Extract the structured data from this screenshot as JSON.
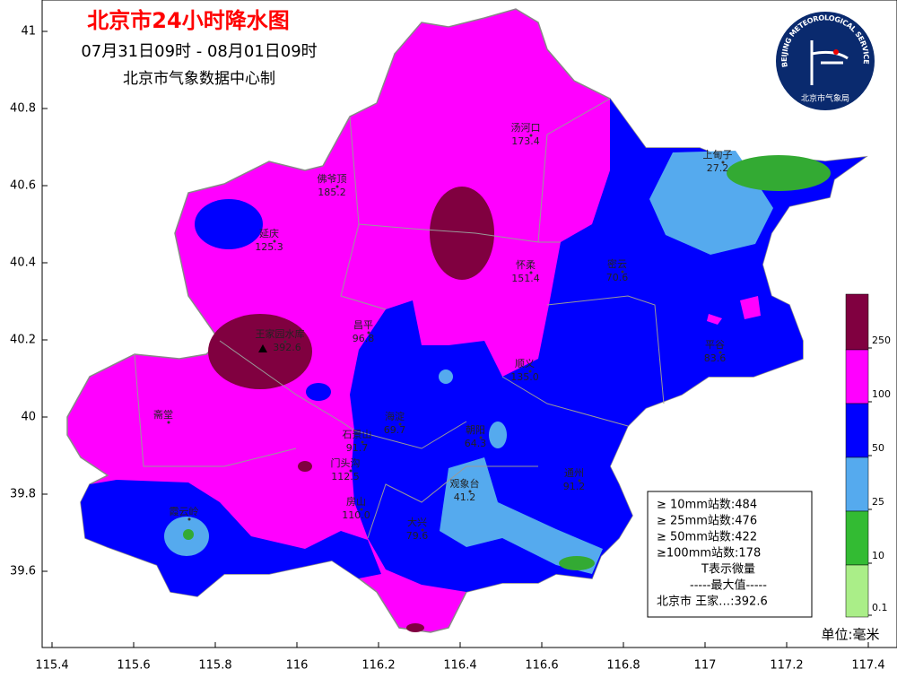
{
  "header": {
    "title": "北京市24小时降水图",
    "period": "07月31日09时 - 08月01日09时",
    "producer": "北京市气象数据中心制"
  },
  "logo": {
    "text_en": "BEIJING METEOROLOGICAL SERVICE",
    "text_cn": "北京市气象局"
  },
  "axes": {
    "yticks": [
      41,
      40.8,
      40.6,
      40.4,
      40.2,
      40,
      39.8,
      39.6
    ],
    "xticks": [
      115.4,
      115.6,
      115.8,
      116,
      116.2,
      116.4,
      116.6,
      116.8,
      117,
      117.2,
      117.4
    ]
  },
  "stations": [
    {
      "name": "汤河口",
      "value": "173.4"
    },
    {
      "name": "佛爷顶",
      "value": "185.2"
    },
    {
      "name": "延庆",
      "value": "125.3"
    },
    {
      "name": "上甸子",
      "value": "27.2"
    },
    {
      "name": "怀柔",
      "value": "151.4"
    },
    {
      "name": "密云",
      "value": "70.6"
    },
    {
      "name": "昌平",
      "value": "96.8"
    },
    {
      "name": "王家园水库",
      "value": "392.6"
    },
    {
      "name": "平谷",
      "value": "83.6"
    },
    {
      "name": "顺义",
      "value": "135.0"
    },
    {
      "name": "斋堂"
    },
    {
      "name": "海淀",
      "value": "69.7"
    },
    {
      "name": "朝阳",
      "value": "64.3"
    },
    {
      "name": "石景山",
      "value": "91.7"
    },
    {
      "name": "门头沟",
      "value": "112.5"
    },
    {
      "name": "观象台",
      "value": "41.2"
    },
    {
      "name": "房山",
      "value": "110.0"
    },
    {
      "name": "大兴",
      "value": "79.6"
    },
    {
      "name": "通州",
      "value": "91.2"
    },
    {
      "name": "霞云岭"
    }
  ],
  "stats": [
    "≥ 10mm站数:484",
    "≥ 25mm站数:476",
    "≥ 50mm站数:422",
    "≥100mm站数:178",
    "T表示微量",
    "-----最大值-----",
    "北京市 王家…:392.6"
  ],
  "colorbar": {
    "ticks": [
      250,
      100,
      50,
      25,
      10,
      0.1
    ]
  },
  "unit": "单位:毫米"
}
